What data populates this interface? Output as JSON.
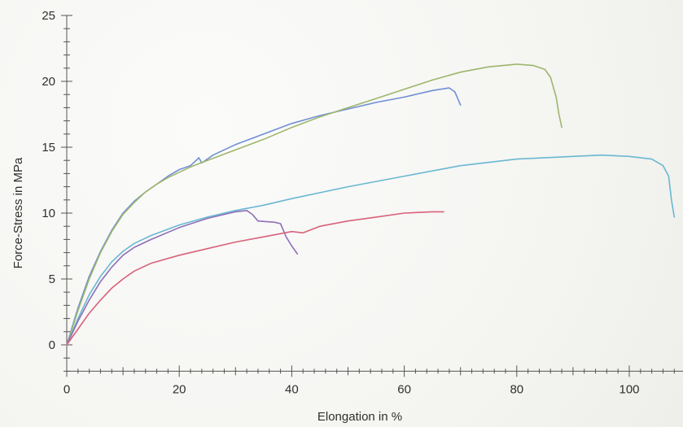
{
  "chart_data": {
    "type": "line",
    "title": "",
    "xlabel": "Elongation in %",
    "ylabel": "Force-Stress in MPa",
    "xlim": [
      0,
      110
    ],
    "ylim": [
      -2,
      25
    ],
    "x_ticks": [
      0,
      20,
      40,
      60,
      80,
      100
    ],
    "y_ticks": [
      0,
      5,
      10,
      15,
      20,
      25
    ],
    "grid": false,
    "legend": "none",
    "series": [
      {
        "color": "#6f8fd6",
        "points": [
          [
            0,
            0
          ],
          [
            2,
            2.8
          ],
          [
            4,
            5.2
          ],
          [
            6,
            7.1
          ],
          [
            8,
            8.7
          ],
          [
            10,
            10
          ],
          [
            12,
            10.9
          ],
          [
            14,
            11.6
          ],
          [
            16,
            12.2
          ],
          [
            18,
            12.8
          ],
          [
            20,
            13.3
          ],
          [
            22,
            13.6
          ],
          [
            23.5,
            14.2
          ],
          [
            24,
            13.8
          ],
          [
            26,
            14.4
          ],
          [
            28,
            14.8
          ],
          [
            30,
            15.2
          ],
          [
            35,
            16
          ],
          [
            40,
            16.8
          ],
          [
            45,
            17.4
          ],
          [
            50,
            17.9
          ],
          [
            55,
            18.4
          ],
          [
            60,
            18.8
          ],
          [
            65,
            19.3
          ],
          [
            68,
            19.5
          ],
          [
            69,
            19.2
          ],
          [
            70,
            18.2
          ]
        ]
      },
      {
        "color": "#9eb66c",
        "points": [
          [
            0,
            0
          ],
          [
            2,
            2.6
          ],
          [
            4,
            5
          ],
          [
            6,
            7
          ],
          [
            8,
            8.6
          ],
          [
            10,
            9.9
          ],
          [
            12,
            10.8
          ],
          [
            14,
            11.6
          ],
          [
            16,
            12.2
          ],
          [
            18,
            12.7
          ],
          [
            20,
            13.1
          ],
          [
            22,
            13.5
          ],
          [
            25,
            14
          ],
          [
            30,
            14.8
          ],
          [
            35,
            15.6
          ],
          [
            40,
            16.5
          ],
          [
            45,
            17.3
          ],
          [
            50,
            18
          ],
          [
            55,
            18.7
          ],
          [
            60,
            19.4
          ],
          [
            65,
            20.1
          ],
          [
            70,
            20.7
          ],
          [
            75,
            21.1
          ],
          [
            80,
            21.3
          ],
          [
            83,
            21.2
          ],
          [
            85,
            20.9
          ],
          [
            86,
            20.3
          ],
          [
            87,
            18.8
          ],
          [
            87.5,
            17.5
          ],
          [
            88,
            16.5
          ]
        ]
      },
      {
        "color": "#69b8d2",
        "points": [
          [
            0,
            0
          ],
          [
            2,
            2
          ],
          [
            4,
            3.8
          ],
          [
            6,
            5.2
          ],
          [
            8,
            6.3
          ],
          [
            10,
            7.1
          ],
          [
            12,
            7.7
          ],
          [
            15,
            8.3
          ],
          [
            20,
            9.1
          ],
          [
            25,
            9.7
          ],
          [
            30,
            10.2
          ],
          [
            35,
            10.6
          ],
          [
            40,
            11.1
          ],
          [
            50,
            12
          ],
          [
            60,
            12.8
          ],
          [
            70,
            13.6
          ],
          [
            80,
            14.1
          ],
          [
            90,
            14.3
          ],
          [
            95,
            14.4
          ],
          [
            100,
            14.3
          ],
          [
            104,
            14.1
          ],
          [
            106,
            13.6
          ],
          [
            107,
            12.8
          ],
          [
            107.5,
            11
          ],
          [
            108,
            9.7
          ]
        ]
      },
      {
        "color": "#8f6fb8",
        "points": [
          [
            0,
            0
          ],
          [
            2,
            1.8
          ],
          [
            4,
            3.4
          ],
          [
            6,
            4.8
          ],
          [
            8,
            5.9
          ],
          [
            10,
            6.8
          ],
          [
            12,
            7.4
          ],
          [
            15,
            8
          ],
          [
            20,
            8.9
          ],
          [
            25,
            9.6
          ],
          [
            30,
            10.1
          ],
          [
            32,
            10.2
          ],
          [
            33,
            9.9
          ],
          [
            34,
            9.4
          ],
          [
            37,
            9.3
          ],
          [
            38,
            9.2
          ],
          [
            39,
            8.2
          ],
          [
            40,
            7.5
          ],
          [
            41,
            6.9
          ]
        ]
      },
      {
        "color": "#d8627a",
        "points": [
          [
            0,
            0
          ],
          [
            2,
            1.2
          ],
          [
            4,
            2.4
          ],
          [
            6,
            3.4
          ],
          [
            8,
            4.3
          ],
          [
            10,
            5
          ],
          [
            12,
            5.6
          ],
          [
            15,
            6.2
          ],
          [
            20,
            6.8
          ],
          [
            25,
            7.3
          ],
          [
            30,
            7.8
          ],
          [
            35,
            8.2
          ],
          [
            40,
            8.6
          ],
          [
            42,
            8.5
          ],
          [
            45,
            9
          ],
          [
            50,
            9.4
          ],
          [
            55,
            9.7
          ],
          [
            60,
            10
          ],
          [
            65,
            10.1
          ],
          [
            67,
            10.1
          ]
        ]
      }
    ]
  }
}
